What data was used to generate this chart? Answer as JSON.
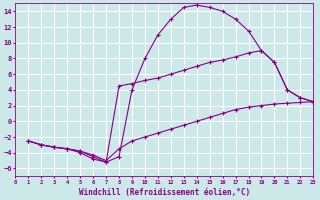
{
  "bg_color": "#cce8e8",
  "grid_color": "#ffffff",
  "line_color": "#880088",
  "marker": "+",
  "xlim": [
    0,
    23
  ],
  "ylim": [
    -7,
    15
  ],
  "xlabel": "Windchill (Refroidissement éolien,°C)",
  "xticks": [
    0,
    1,
    2,
    3,
    4,
    5,
    6,
    7,
    8,
    9,
    10,
    11,
    12,
    13,
    14,
    15,
    16,
    17,
    18,
    19,
    20,
    21,
    22,
    23
  ],
  "yticks": [
    -6,
    -4,
    -2,
    0,
    2,
    4,
    6,
    8,
    10,
    12,
    14
  ],
  "curves": [
    {
      "x": [
        1,
        2,
        3,
        4,
        5,
        6,
        7,
        8,
        9,
        10,
        11,
        12,
        13,
        14,
        15,
        16,
        17,
        18,
        19,
        20,
        21,
        22,
        23
      ],
      "y": [
        -2.5,
        -3.0,
        -3.3,
        -3.5,
        -4.0,
        -4.8,
        -5.2,
        -4.5,
        4.0,
        8.0,
        11.0,
        13.0,
        14.5,
        14.8,
        14.5,
        14.0,
        13.0,
        11.5,
        9.0,
        7.5,
        4.0,
        3.0,
        2.5
      ]
    },
    {
      "x": [
        1,
        2,
        3,
        4,
        5,
        6,
        7,
        8,
        9,
        10,
        11,
        12,
        13,
        14,
        15,
        16,
        17,
        18,
        19,
        20,
        21,
        22,
        23
      ],
      "y": [
        -2.5,
        -3.0,
        -3.3,
        -3.5,
        -3.8,
        -4.5,
        -5.2,
        4.5,
        4.8,
        5.2,
        5.5,
        6.0,
        6.5,
        7.0,
        7.5,
        7.8,
        8.2,
        8.7,
        9.0,
        7.5,
        4.0,
        3.0,
        2.5
      ]
    },
    {
      "x": [
        1,
        2,
        3,
        4,
        5,
        6,
        7,
        8,
        9,
        10,
        11,
        12,
        13,
        14,
        15,
        16,
        17,
        18,
        19,
        20,
        21,
        22,
        23
      ],
      "y": [
        -2.5,
        -3.0,
        -3.3,
        -3.5,
        -3.8,
        -4.3,
        -5.0,
        -3.5,
        -2.5,
        -2.0,
        -1.5,
        -1.0,
        -0.5,
        0.0,
        0.5,
        1.0,
        1.5,
        1.8,
        2.0,
        2.2,
        2.3,
        2.4,
        2.5
      ]
    }
  ]
}
